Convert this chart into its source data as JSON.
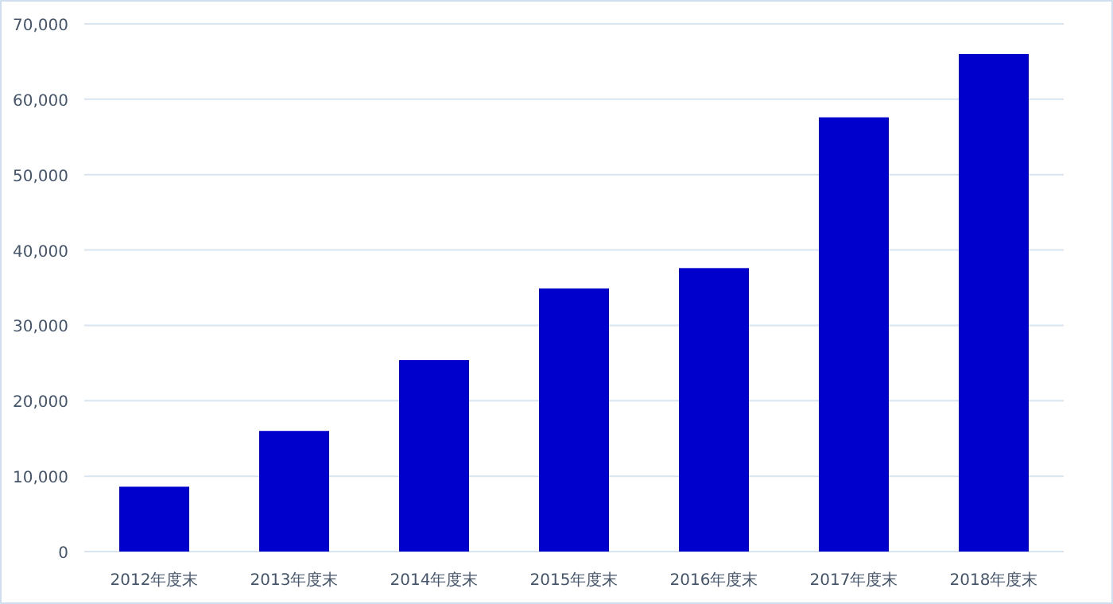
{
  "chart_data": {
    "type": "bar",
    "categories": [
      "2012年度末",
      "2013年度末",
      "2014年度末",
      "2015年度末",
      "2016年度末",
      "2017年度末",
      "2018年度末"
    ],
    "values": [
      8600,
      16000,
      25400,
      34900,
      37600,
      57600,
      66000
    ],
    "color": "#0000cc",
    "ylim": [
      0,
      70000
    ],
    "yticks": [
      {
        "value": 0,
        "label": "0"
      },
      {
        "value": 10000,
        "label": "10,000"
      },
      {
        "value": 20000,
        "label": "20,000"
      },
      {
        "value": 30000,
        "label": "30,000"
      },
      {
        "value": 40000,
        "label": "40,000"
      },
      {
        "value": 50000,
        "label": "50,000"
      },
      {
        "value": 60000,
        "label": "60,000"
      },
      {
        "value": 70000,
        "label": "70,000"
      }
    ],
    "grid": "y"
  }
}
